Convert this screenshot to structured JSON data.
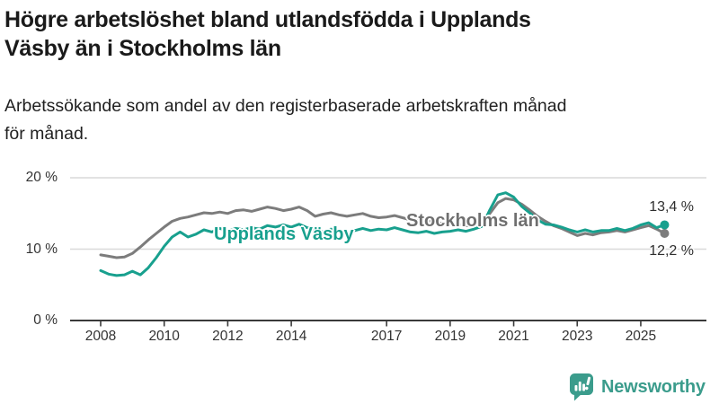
{
  "header": {
    "title_lines": [
      "Högre arbetslöshet bland utlandsfödda i Upplands",
      "Väsby än i Stockholms län"
    ],
    "subtitle_lines": [
      "Arbetssökande som andel av den registerbaserade arbetskraften månad",
      "för månad."
    ]
  },
  "chart_data": {
    "type": "line",
    "unit": "%",
    "ylim": [
      0,
      20
    ],
    "grid": "horizontal",
    "y_ticks": [
      {
        "value": 0,
        "label": "0 %"
      },
      {
        "value": 10,
        "label": "10 %"
      },
      {
        "value": 20,
        "label": "20 %"
      }
    ],
    "x_ticks": [
      {
        "year": 2008,
        "label": "2008"
      },
      {
        "year": 2010,
        "label": "2010"
      },
      {
        "year": 2012,
        "label": "2012"
      },
      {
        "year": 2014,
        "label": "2014"
      },
      {
        "year": 2017,
        "label": "2017"
      },
      {
        "year": 2019,
        "label": "2019"
      },
      {
        "year": 2021,
        "label": "2021"
      },
      {
        "year": 2023,
        "label": "2023"
      },
      {
        "year": 2025,
        "label": "2025"
      }
    ],
    "x": [
      2008.0,
      2008.25,
      2008.5,
      2008.75,
      2009.0,
      2009.25,
      2009.5,
      2009.75,
      2010.0,
      2010.25,
      2010.5,
      2010.75,
      2011.0,
      2011.25,
      2011.5,
      2011.75,
      2012.0,
      2012.25,
      2012.5,
      2012.75,
      2013.0,
      2013.25,
      2013.5,
      2013.75,
      2014.0,
      2014.25,
      2014.5,
      2014.75,
      2015.0,
      2015.25,
      2015.5,
      2015.75,
      2016.0,
      2016.25,
      2016.5,
      2016.75,
      2017.0,
      2017.25,
      2017.5,
      2017.75,
      2018.0,
      2018.25,
      2018.5,
      2018.75,
      2019.0,
      2019.25,
      2019.5,
      2019.75,
      2020.0,
      2020.25,
      2020.5,
      2020.75,
      2021.0,
      2021.25,
      2021.5,
      2021.75,
      2022.0,
      2022.25,
      2022.5,
      2022.75,
      2023.0,
      2023.25,
      2023.5,
      2023.75,
      2024.0,
      2024.25,
      2024.5,
      2024.75,
      2025.0,
      2025.25,
      2025.5,
      2025.75
    ],
    "series": [
      {
        "name": "Stockholms län",
        "color": "#7c7c7c",
        "end_label": "12,2 %",
        "end_value": 12.2,
        "values": [
          9.2,
          9.0,
          8.8,
          8.9,
          9.4,
          10.3,
          11.3,
          12.2,
          13.1,
          13.9,
          14.3,
          14.5,
          14.8,
          15.1,
          15.0,
          15.2,
          15.0,
          15.4,
          15.5,
          15.3,
          15.6,
          15.9,
          15.7,
          15.4,
          15.6,
          15.9,
          15.4,
          14.6,
          14.9,
          15.1,
          14.8,
          14.6,
          14.8,
          15.0,
          14.6,
          14.4,
          14.5,
          14.7,
          14.4,
          14.1,
          14.0,
          14.1,
          13.8,
          13.6,
          13.6,
          13.5,
          13.3,
          13.4,
          13.7,
          15.0,
          16.5,
          17.1,
          16.9,
          16.3,
          15.5,
          14.6,
          13.9,
          13.3,
          12.9,
          12.4,
          11.9,
          12.2,
          12.0,
          12.3,
          12.4,
          12.6,
          12.4,
          12.7,
          13.0,
          13.3,
          12.8,
          12.2
        ]
      },
      {
        "name": "Upplands Väsby",
        "color": "#18a08e",
        "end_label": "13,4 %",
        "end_value": 13.4,
        "values": [
          7.0,
          6.5,
          6.3,
          6.4,
          6.9,
          6.4,
          7.4,
          8.8,
          10.4,
          11.7,
          12.4,
          11.7,
          12.1,
          12.7,
          12.4,
          12.9,
          12.5,
          12.9,
          12.7,
          13.0,
          12.8,
          13.3,
          13.1,
          13.4,
          13.1,
          13.5,
          13.0,
          12.6,
          12.4,
          12.8,
          12.5,
          12.3,
          12.6,
          12.9,
          12.6,
          12.8,
          12.7,
          13.0,
          12.7,
          12.4,
          12.3,
          12.5,
          12.2,
          12.4,
          12.5,
          12.7,
          12.5,
          12.8,
          13.2,
          15.5,
          17.6,
          17.9,
          17.3,
          16.0,
          15.1,
          14.1,
          13.5,
          13.4,
          13.1,
          12.7,
          12.4,
          12.7,
          12.4,
          12.6,
          12.6,
          12.9,
          12.6,
          12.9,
          13.4,
          13.7,
          13.0,
          13.4
        ]
      }
    ]
  },
  "footer": {
    "brand": "Newsworthy",
    "brand_color": "#3b9c8c",
    "icon": "newsworthy-logo-icon"
  }
}
